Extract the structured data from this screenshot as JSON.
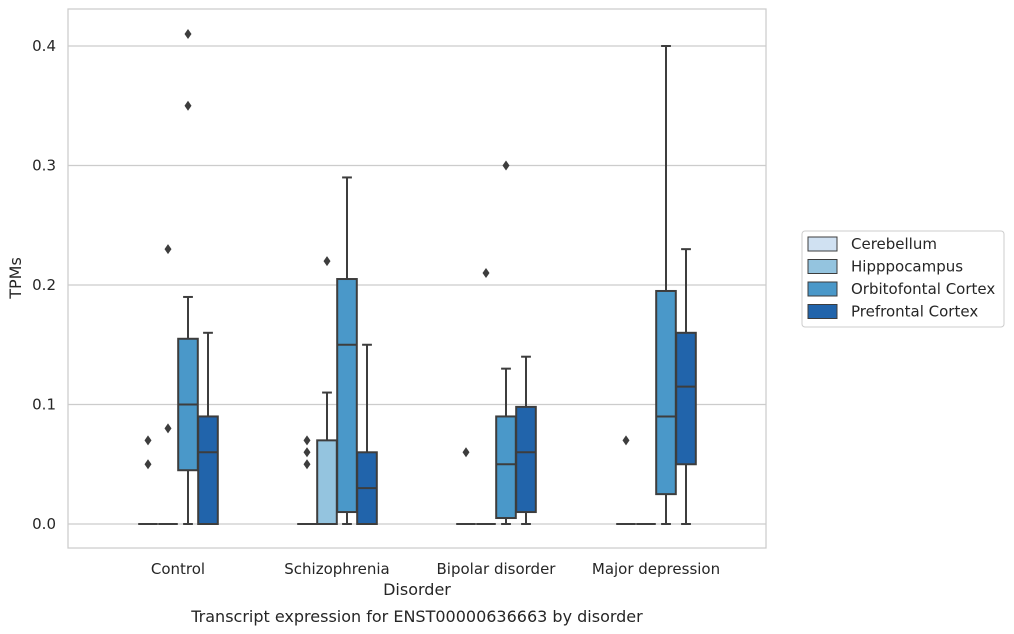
{
  "chart_data": {
    "type": "boxplot",
    "caption": "Transcript expression for ENST00000636663 by disorder",
    "xlabel": "Disorder",
    "ylabel": "TPMs",
    "ylim": [
      -0.02,
      0.43
    ],
    "yticks": [
      0.0,
      0.1,
      0.2,
      0.3,
      0.4
    ],
    "ytick_labels": [
      "0.0",
      "0.1",
      "0.2",
      "0.3",
      "0.4"
    ],
    "grid": "horizontal",
    "legend_position": "right",
    "categories": [
      "Control",
      "Schizophrenia",
      "Bipolar disorder",
      "Major depression"
    ],
    "series": [
      {
        "name": "Cerebellum",
        "color": "#d0e1f2",
        "boxes": [
          {
            "q1": 0.0,
            "median": 0.0,
            "q3": 0.0,
            "whislo": 0.0,
            "whishi": 0.0,
            "fliers": [
              0.05,
              0.07
            ]
          },
          {
            "q1": 0.0,
            "median": 0.0,
            "q3": 0.0,
            "whislo": 0.0,
            "whishi": 0.0,
            "fliers": [
              0.05,
              0.06,
              0.07
            ]
          },
          {
            "q1": 0.0,
            "median": 0.0,
            "q3": 0.0,
            "whislo": 0.0,
            "whishi": 0.0,
            "fliers": [
              0.06
            ]
          },
          {
            "q1": 0.0,
            "median": 0.0,
            "q3": 0.0,
            "whislo": 0.0,
            "whishi": 0.0,
            "fliers": [
              0.07
            ]
          }
        ]
      },
      {
        "name": "Hipppocampus",
        "color": "#94c4df",
        "boxes": [
          {
            "q1": 0.0,
            "median": 0.0,
            "q3": 0.0,
            "whislo": 0.0,
            "whishi": 0.0,
            "fliers": [
              0.08,
              0.23
            ]
          },
          {
            "q1": 0.0,
            "median": 0.0,
            "q3": 0.07,
            "whislo": 0.0,
            "whishi": 0.11,
            "fliers": [
              0.22
            ]
          },
          {
            "q1": 0.0,
            "median": 0.0,
            "q3": 0.0,
            "whislo": 0.0,
            "whishi": 0.0,
            "fliers": [
              0.21
            ]
          },
          {
            "q1": 0.0,
            "median": 0.0,
            "q3": 0.0,
            "whislo": 0.0,
            "whishi": 0.0,
            "fliers": []
          }
        ]
      },
      {
        "name": "Orbitofontal Cortex",
        "color": "#4a98c9",
        "boxes": [
          {
            "q1": 0.045,
            "median": 0.1,
            "q3": 0.155,
            "whislo": 0.0,
            "whishi": 0.19,
            "fliers": [
              0.35,
              0.41
            ]
          },
          {
            "q1": 0.01,
            "median": 0.15,
            "q3": 0.205,
            "whislo": 0.0,
            "whishi": 0.29,
            "fliers": []
          },
          {
            "q1": 0.005,
            "median": 0.05,
            "q3": 0.09,
            "whislo": 0.0,
            "whishi": 0.13,
            "fliers": [
              0.3
            ]
          },
          {
            "q1": 0.025,
            "median": 0.09,
            "q3": 0.195,
            "whislo": 0.0,
            "whishi": 0.4,
            "fliers": []
          }
        ]
      },
      {
        "name": "Prefrontal Cortex",
        "color": "#2164ab",
        "boxes": [
          {
            "q1": 0.0,
            "median": 0.06,
            "q3": 0.09,
            "whislo": 0.0,
            "whishi": 0.16,
            "fliers": []
          },
          {
            "q1": 0.0,
            "median": 0.03,
            "q3": 0.06,
            "whislo": 0.0,
            "whishi": 0.15,
            "fliers": []
          },
          {
            "q1": 0.01,
            "median": 0.06,
            "q3": 0.098,
            "whislo": 0.0,
            "whishi": 0.14,
            "fliers": []
          },
          {
            "q1": 0.05,
            "median": 0.115,
            "q3": 0.16,
            "whislo": 0.0,
            "whishi": 0.23,
            "fliers": []
          }
        ]
      }
    ]
  }
}
